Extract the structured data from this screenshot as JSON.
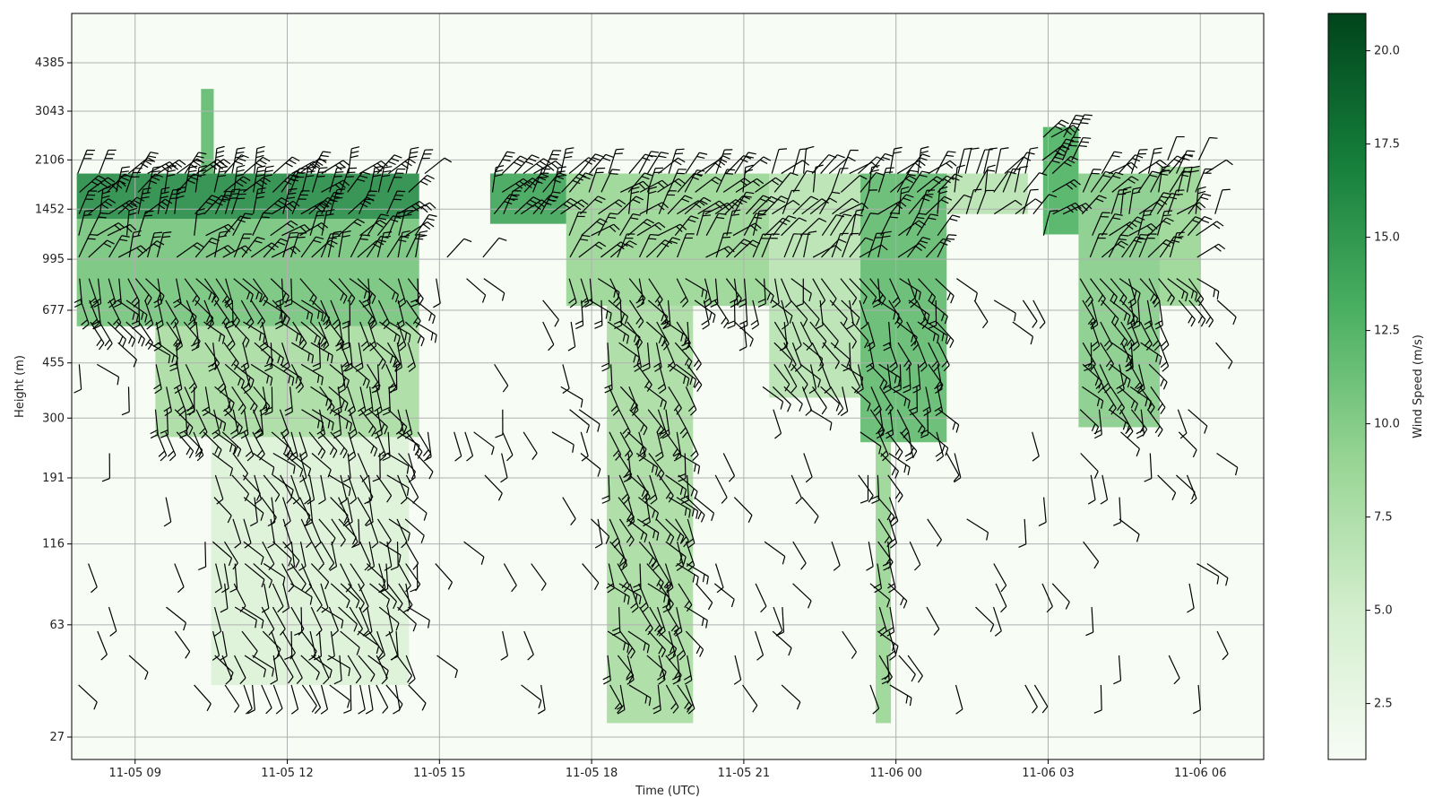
{
  "chart_data": {
    "type": "heatmap",
    "title": "",
    "xlabel": "Time (UTC)",
    "ylabel": "Height (m)",
    "x_ticks": [
      "11-05 09",
      "11-05 12",
      "11-05 15",
      "11-05 18",
      "11-05 21",
      "11-06 00",
      "11-06 03",
      "11-06 06"
    ],
    "y_ticks": [
      "27",
      "63",
      "116",
      "191",
      "300",
      "455",
      "677",
      "995",
      "1452",
      "2106",
      "3043",
      "4385"
    ],
    "y_scale": "log",
    "xlim_hours": [
      7.75,
      31.25
    ],
    "grid": true,
    "colormap": "Greens",
    "colorbar": {
      "label": "Wind Speed (m/s)",
      "range": [
        1.0,
        21.0
      ],
      "ticks": [
        "2.5",
        "5.0",
        "7.5",
        "10.0",
        "12.5",
        "15.0",
        "17.5",
        "20.0"
      ]
    },
    "overlay": "wind barbs",
    "wind_speed_regions": [
      {
        "t0": 7.85,
        "t1": 14.6,
        "h0": 1350,
        "h1": 1900,
        "speed": 16
      },
      {
        "t0": 7.85,
        "t1": 14.6,
        "h0": 600,
        "h1": 1350,
        "speed": 11
      },
      {
        "t0": 9.4,
        "t1": 14.6,
        "h0": 260,
        "h1": 600,
        "speed": 8
      },
      {
        "t0": 10.5,
        "t1": 14.4,
        "h0": 40,
        "h1": 260,
        "speed": 4
      },
      {
        "t0": 10.3,
        "t1": 10.55,
        "h0": 1900,
        "h1": 3600,
        "speed": 12
      },
      {
        "t0": 16.0,
        "t1": 17.5,
        "h0": 1300,
        "h1": 1900,
        "speed": 14
      },
      {
        "t0": 17.5,
        "t1": 21.5,
        "h0": 700,
        "h1": 1900,
        "speed": 9
      },
      {
        "t0": 18.3,
        "t1": 20.0,
        "h0": 30,
        "h1": 700,
        "speed": 8
      },
      {
        "t0": 21.5,
        "t1": 23.3,
        "h0": 350,
        "h1": 1900,
        "speed": 7
      },
      {
        "t0": 23.3,
        "t1": 25.0,
        "h0": 250,
        "h1": 1900,
        "speed": 12
      },
      {
        "t0": 23.6,
        "t1": 23.9,
        "h0": 30,
        "h1": 250,
        "speed": 9
      },
      {
        "t0": 25.0,
        "t1": 26.6,
        "h0": 1400,
        "h1": 1900,
        "speed": 7
      },
      {
        "t0": 26.9,
        "t1": 27.6,
        "h0": 1200,
        "h1": 2700,
        "speed": 13
      },
      {
        "t0": 27.6,
        "t1": 29.2,
        "h0": 280,
        "h1": 1900,
        "speed": 10
      },
      {
        "t0": 29.2,
        "t1": 30.0,
        "h0": 700,
        "h1": 2000,
        "speed": 9
      }
    ]
  }
}
